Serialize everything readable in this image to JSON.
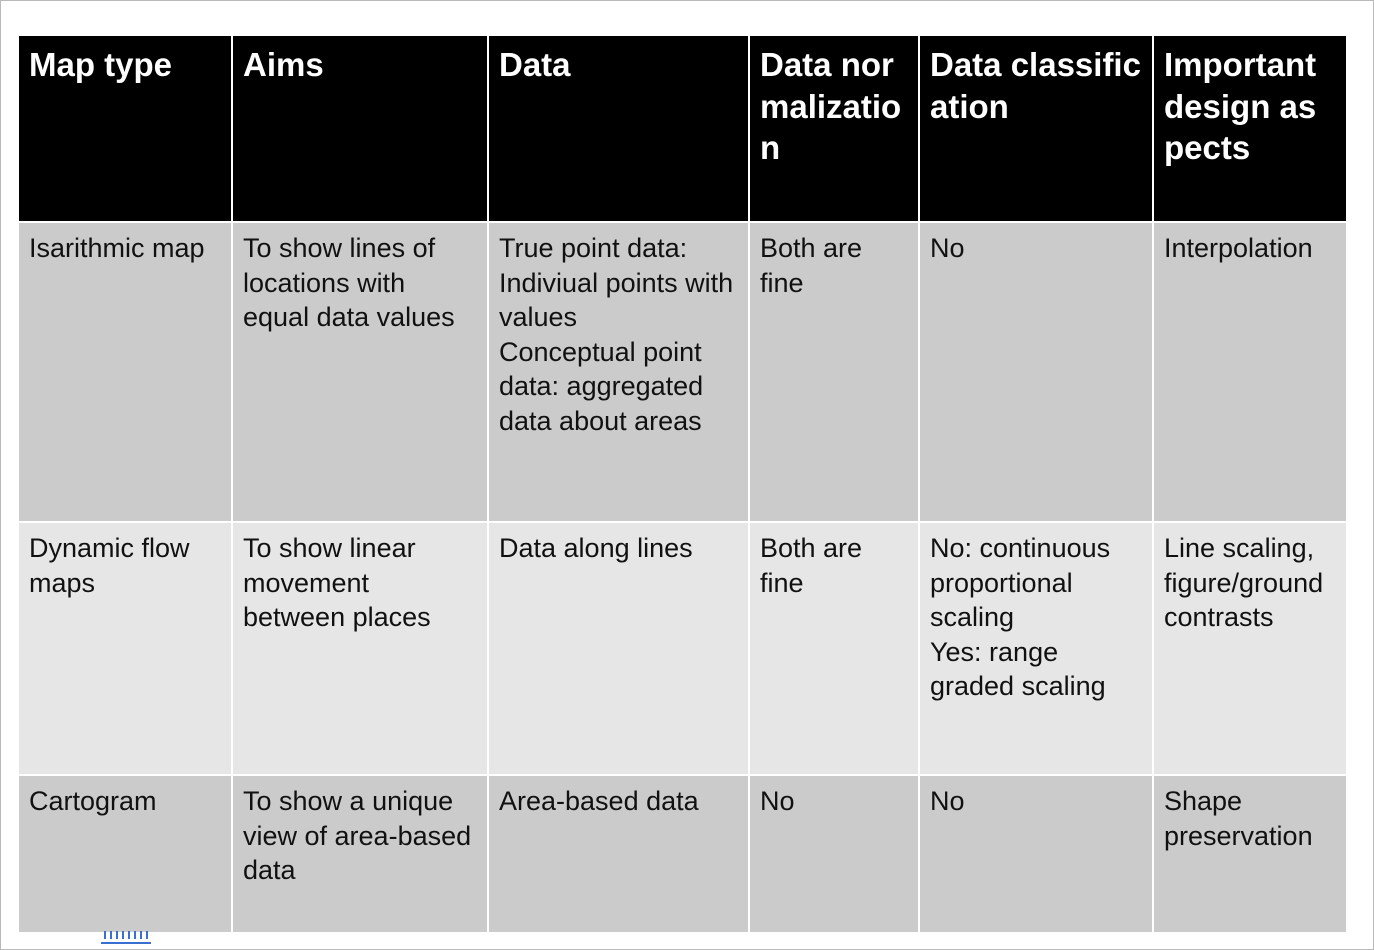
{
  "table": {
    "headers": [
      "Map type",
      "Aims",
      "Data",
      "Data normalization",
      "Data classification",
      "Important design aspects"
    ],
    "rows": [
      {
        "map_type": "Isarithmic map",
        "aims": "To show lines of locations with equal data values",
        "data_lines": [
          "True point data: Indiviual points with values",
          "Conceptual point data: aggregated data about areas"
        ],
        "normalization": "Both are fine",
        "classification_lines": [
          "No"
        ],
        "design": "Interpolation"
      },
      {
        "map_type": "Dynamic flow maps",
        "aims": "To show linear movement between places",
        "data_lines": [
          "Data along lines"
        ],
        "normalization": "Both are fine",
        "classification_lines": [
          "No: continuous proportional scaling",
          "Yes: range graded scaling"
        ],
        "design": "Line scaling, figure/ground contrasts"
      },
      {
        "map_type": "Cartogram",
        "aims": "To show a unique view of area-based data",
        "data_lines": [
          "Area-based data"
        ],
        "normalization": "No",
        "classification_lines": [
          "No"
        ],
        "design": "Shape preservation"
      }
    ]
  },
  "colors": {
    "header_bg": "#000000",
    "row_dark_bg": "#cbcbcb",
    "row_light_bg": "#e6e6e6",
    "marker": "#3a6fd1"
  },
  "icons": {
    "selection_marker": "dashed-underline-marker"
  }
}
